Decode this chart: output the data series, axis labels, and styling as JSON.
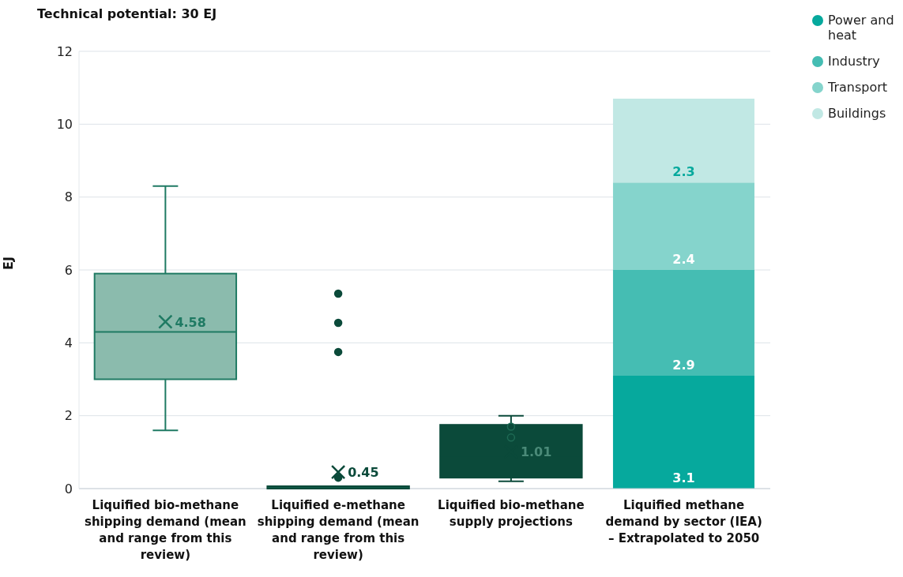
{
  "chart_data": {
    "type": "box",
    "title": "Technical potential: 30 EJ",
    "ylabel": "EJ",
    "categories": [
      "Liquified bio-methane shipping demand (mean and range from this review)",
      "Liquified e-methane shipping demand (mean and range from this review)",
      "Liquified bio-methane supply projections",
      "Liquified methane demand by sector (IEA) – Extrapolated to 2050"
    ],
    "boxes": [
      {
        "low": 1.6,
        "q1": 3.0,
        "median": 4.3,
        "q3": 5.9,
        "high": 8.3,
        "mean": 4.58
      },
      {
        "low": 0,
        "q1": 0,
        "median": 0,
        "q3": 0.05,
        "high": 0.05,
        "mean": 0.45,
        "outliers": [
          5.35,
          4.55,
          3.75,
          0.3
        ]
      },
      {
        "low": 0.2,
        "q1": 0.3,
        "median": 0.9,
        "q3": 1.75,
        "high": 2.0,
        "mean": 1.01,
        "outliers": [
          1.7,
          1.4
        ]
      },
      null
    ],
    "colors": [
      "#8bbbad",
      "#0f5c49",
      "#0b4a3a",
      null
    ],
    "series": [
      {
        "name": "Power and heat",
        "type": "bar",
        "color": "#06a99d",
        "values": [
          null,
          null,
          null,
          3.1
        ]
      },
      {
        "name": "Industry",
        "type": "bar",
        "color": "#45bdb3",
        "values": [
          null,
          null,
          null,
          2.9
        ]
      },
      {
        "name": "Transport",
        "type": "bar",
        "color": "#85d4cc",
        "values": [
          null,
          null,
          null,
          2.4
        ]
      },
      {
        "name": "Buildings",
        "type": "bar",
        "color": "#c1e8e4",
        "values": [
          null,
          null,
          null,
          2.3
        ]
      }
    ],
    "annotations": [
      "4.58",
      "0.45",
      "1.01"
    ],
    "stacked": true,
    "data_labels": true,
    "ylim": [
      0,
      12
    ],
    "yticks": [
      0,
      2,
      4,
      6,
      8,
      10,
      12
    ],
    "grid": "y",
    "legend": "top right"
  }
}
